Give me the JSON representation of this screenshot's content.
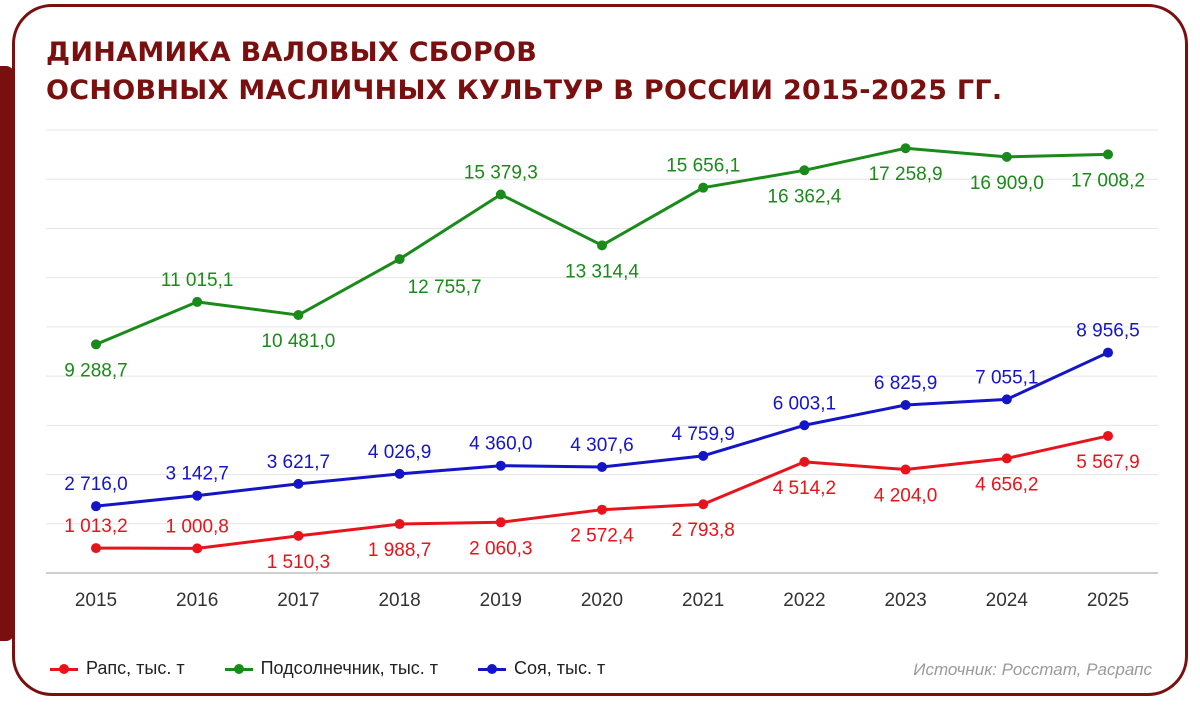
{
  "title": {
    "line1": "ДИНАМИКА ВАЛОВЫХ СБОРОВ",
    "line2": "ОСНОВНЫХ МАСЛИЧНЫХ КУЛЬТУР В РОССИИ 2015-2025 ГГ."
  },
  "source": "Источник: Росстат, Расрапс",
  "colors": {
    "frame": "#7a0f10",
    "rapeseed": "#e8141c",
    "sunflower": "#1a8a1a",
    "soy": "#1414c8",
    "grid": "#e6e6e6"
  },
  "legend": [
    {
      "label": "Рапс, тыс. т",
      "color_key": "rapeseed"
    },
    {
      "label": "Подсолнечник, тыс. т",
      "color_key": "sunflower"
    },
    {
      "label": "Соя, тыс. т",
      "color_key": "soy"
    }
  ],
  "chart_data": {
    "type": "line",
    "title": "ДИНАМИКА ВАЛОВЫХ СБОРОВ ОСНОВНЫХ МАСЛИЧНЫХ КУЛЬТУР В РОССИИ 2015-2025 ГГ.",
    "categories": [
      "2015",
      "2016",
      "2017",
      "2018",
      "2019",
      "2020",
      "2021",
      "2022",
      "2023",
      "2024",
      "2025"
    ],
    "ylim": [
      0,
      18000
    ],
    "grid": true,
    "legend_position": "bottom-left",
    "series": [
      {
        "name": "Рапс, тыс. т",
        "color_key": "rapeseed",
        "values": [
          1013.2,
          1000.8,
          1510.3,
          1988.7,
          2060.3,
          2572.4,
          2793.8,
          4514.2,
          4204.0,
          4656.2,
          5567.9
        ],
        "labels": [
          "1 013,2",
          "1 000,8",
          "1 510,3",
          "1 988,7",
          "2 060,3",
          "2 572,4",
          "2 793,8",
          "4 514,2",
          "4 204,0",
          "4 656,2",
          "5 567,9"
        ],
        "label_pos": [
          "above",
          "above",
          "below",
          "below",
          "below",
          "below",
          "below",
          "below",
          "below",
          "below",
          "below"
        ]
      },
      {
        "name": "Подсолнечник, тыс. т",
        "color_key": "sunflower",
        "values": [
          9288.7,
          11015.1,
          10481.0,
          12755.7,
          15379.3,
          13314.4,
          15656.1,
          16362.4,
          17258.9,
          16909.0,
          17008.2
        ],
        "labels": [
          "9 288,7",
          "11 015,1",
          "10 481,0",
          "12 755,7",
          "15 379,3",
          "13 314,4",
          "15 656,1",
          "16 362,4",
          "17 258,9",
          "16 909,0",
          "17 008,2"
        ],
        "label_pos": [
          "below",
          "above",
          "below",
          "below-right",
          "above",
          "below",
          "above",
          "below",
          "below",
          "below",
          "below"
        ]
      },
      {
        "name": "Соя, тыс. т",
        "color_key": "soy",
        "values": [
          2716.0,
          3142.7,
          3621.7,
          4026.9,
          4360.0,
          4307.6,
          4759.9,
          6003.1,
          6825.9,
          7055.1,
          8956.5
        ],
        "labels": [
          "2 716,0",
          "3 142,7",
          "3 621,7",
          "4 026,9",
          "4 360,0",
          "4 307,6",
          "4 759,9",
          "6 003,1",
          "6 825,9",
          "7 055,1",
          "8 956,5"
        ],
        "label_pos": [
          "above",
          "above",
          "above",
          "above",
          "above",
          "above",
          "above",
          "above",
          "above",
          "above",
          "above"
        ]
      }
    ]
  }
}
